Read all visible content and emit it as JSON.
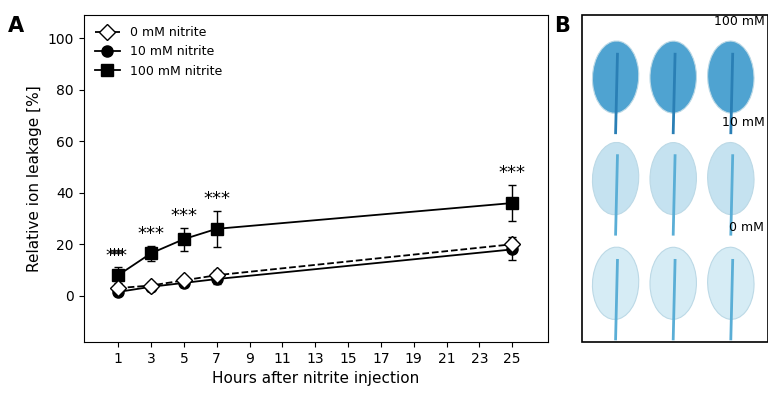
{
  "chart_data": {
    "type": "line",
    "panel_label": "A",
    "x_label": "Hours after nitrite injection",
    "y_label": "Relative ion leakage [%]",
    "x": [
      1,
      3,
      5,
      7,
      25
    ],
    "xlim": [
      -1.1,
      27.2
    ],
    "xticks": [
      1,
      3,
      5,
      7,
      9,
      11,
      13,
      15,
      17,
      19,
      21,
      23,
      25
    ],
    "ylim": [
      -18,
      109
    ],
    "yticks": [
      0,
      20,
      40,
      60,
      80,
      100
    ],
    "legend": "upper left",
    "series": [
      {
        "name": "0 mM nitrite",
        "color": "#000000",
        "marker": "diamond_open",
        "line_style": "dashed",
        "values": [
          3,
          4,
          6,
          8,
          20
        ],
        "errors": [
          1,
          1.5,
          1.5,
          2,
          3
        ]
      },
      {
        "name": "10 mM nitrite",
        "color": "#000000",
        "marker": "circle",
        "line_style": "solid",
        "values": [
          1.5,
          3.5,
          5,
          6.5,
          18
        ],
        "errors": [
          1,
          1.5,
          1.5,
          2,
          4
        ]
      },
      {
        "name": "100 mM nitrite",
        "color": "#000000",
        "marker": "square",
        "line_style": "solid",
        "values": [
          8,
          16.5,
          22,
          26,
          36
        ],
        "errors": [
          3,
          3,
          4.5,
          7,
          7
        ]
      }
    ],
    "annotations": [
      {
        "x": 1,
        "text": "**"
      },
      {
        "x": 1,
        "text": "**"
      },
      {
        "x": 3,
        "text": "***"
      },
      {
        "x": 5,
        "text": "***"
      },
      {
        "x": 7,
        "text": "***"
      },
      {
        "x": 25,
        "text": "***"
      }
    ]
  },
  "image_panel": {
    "panel_label": "B",
    "row_labels": [
      "100 mM",
      "10 mM",
      "0 mM"
    ]
  }
}
